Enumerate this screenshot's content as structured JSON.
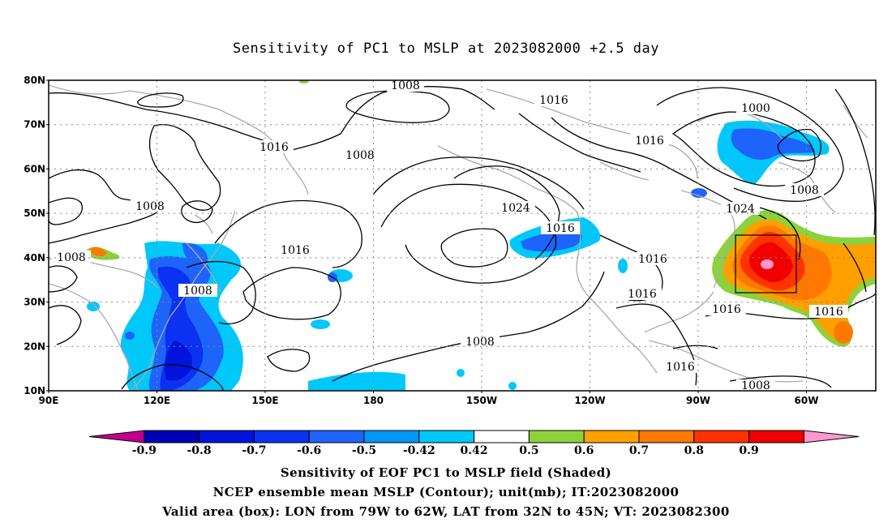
{
  "title": "Sensitivity of PC1 to MSLP at 2023082000 +2.5 day",
  "lat_labels": [
    "80N",
    "70N",
    "60N",
    "50N",
    "40N",
    "30N",
    "20N",
    "10N"
  ],
  "lon_labels": [
    "90E",
    "120E",
    "150E",
    "180",
    "150W",
    "120W",
    "90W",
    "60W"
  ],
  "contour_labels": [
    "1008",
    "1016",
    "1016",
    "1008",
    "1016",
    "1000",
    "1016",
    "1008",
    "1008",
    "1024",
    "1016",
    "1024",
    "1016",
    "1008",
    "1016",
    "1008",
    "1016",
    "1016",
    "1016",
    "1008",
    "1016",
    "1008"
  ],
  "legend": {
    "ticks": [
      "-0.9",
      "-0.8",
      "-0.7",
      "-0.6",
      "-0.5",
      "-0.42",
      "0.42",
      "0.5",
      "0.6",
      "0.7",
      "0.8",
      "0.9"
    ],
    "colors": [
      "#c0008c",
      "#0000b4",
      "#0014dc",
      "#0a32f0",
      "#1e64fa",
      "#0096fa",
      "#00c8fa",
      "#ffffff",
      "#8cd23c",
      "#ffa000",
      "#ff7800",
      "#ff3200",
      "#f00000",
      "#ff99cc"
    ]
  },
  "captions": [
    "Sensitivity of EOF PC1 to MSLP field (Shaded)",
    "NCEP ensemble mean MSLP (Contour); unit(mb); IT:2023082000",
    "Valid area (box): LON from 79W to 62W, LAT from 32N to 45N; VT: 2023082300"
  ]
}
